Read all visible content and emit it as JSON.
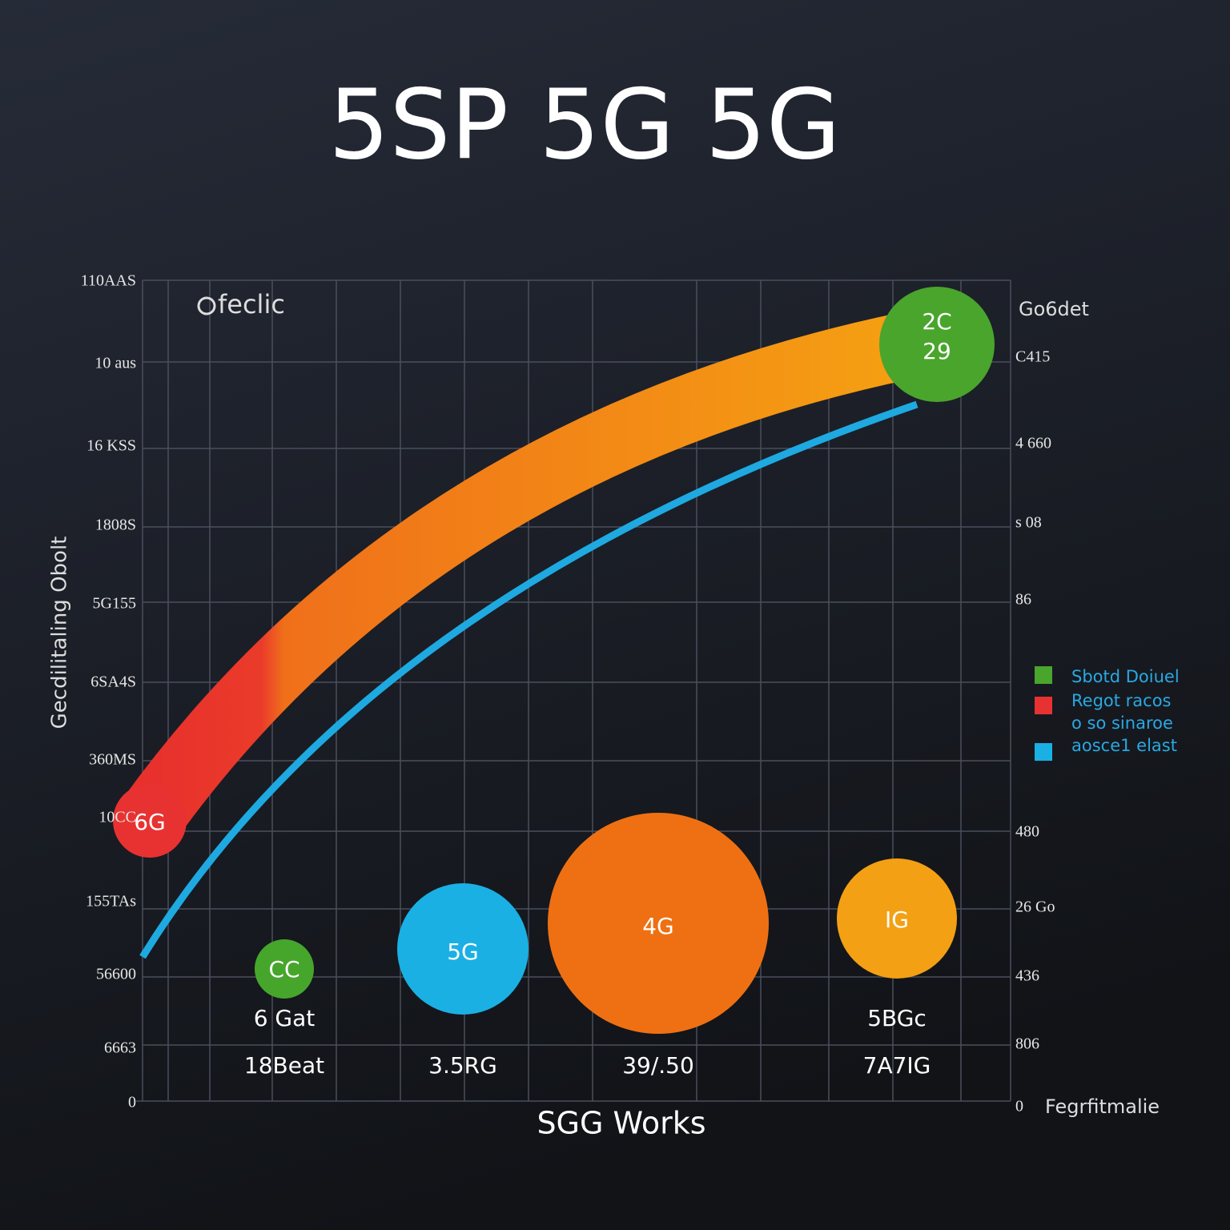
{
  "header": {
    "title": "5SP 5G 5G"
  },
  "plot": {
    "inner_label": "feclic",
    "y_title": "Gecdilitaling Obolt",
    "left_labels": [
      "110AAS",
      "10 aus",
      "16 KSS",
      "1808S",
      "5G155",
      "6SA4S",
      "360MS",
      "10CC",
      "155TAs",
      "56600",
      "6663",
      "0"
    ],
    "right_labels": [
      "C415",
      "4 660",
      "s 08",
      "86",
      "480",
      "26 Go",
      "436",
      "806",
      "0"
    ],
    "right_title": "Go6det",
    "bubbles": {
      "top": [
        "2C",
        "29"
      ],
      "start": "6G",
      "small": "CC",
      "blue": "5G",
      "big": "4G",
      "gold": "IG"
    },
    "sub_labels": [
      "6 Gat",
      "5BGc"
    ],
    "bottom_labels": [
      "18Beat",
      "3.5RG",
      "39/.50",
      "7A7IG"
    ],
    "x_title": "SGG Works",
    "corner_label": "Fegrfitmalie"
  },
  "legend": {
    "items": [
      "Sbotd Doiuel",
      "Regot racos",
      "o so sinaroe",
      "aosce1 elast"
    ]
  }
}
